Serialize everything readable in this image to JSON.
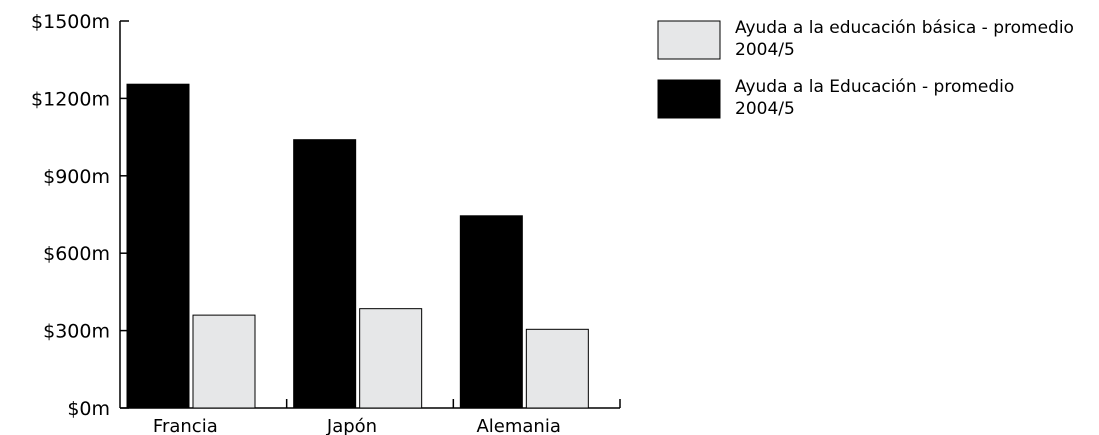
{
  "chart_data": {
    "type": "bar",
    "categories": [
      "Francia",
      "Japón",
      "Alemania"
    ],
    "series": [
      {
        "name": "Ayuda a la Educación - promedio 2004/5",
        "name_lines": [
          "Ayuda a la Educación - promedio",
          "2004/5"
        ],
        "color": "#000000",
        "values": [
          1255,
          1040,
          745
        ]
      },
      {
        "name": "Ayuda a la educación básica - promedio 2004/5",
        "name_lines": [
          "Ayuda a la educación básica - promedio",
          "2004/5"
        ],
        "color": "#e6e7e8",
        "values": [
          360,
          385,
          305
        ]
      }
    ],
    "legend_order": [
      1,
      0
    ],
    "yticks": [
      0,
      300,
      600,
      900,
      1200,
      1500
    ],
    "ytick_labels": [
      "$0m",
      "$300m",
      "$600m",
      "$900m",
      "$1200m",
      "$1500m"
    ],
    "ylim": [
      0,
      1500
    ],
    "grid": false,
    "legend_position": "top-right",
    "title": "",
    "xlabel": "",
    "ylabel": ""
  }
}
